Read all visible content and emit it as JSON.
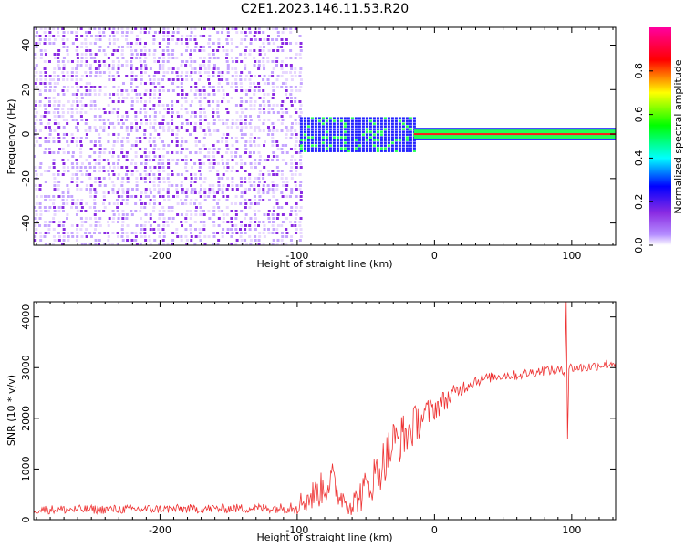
{
  "title": "C2E1.2023.146.11.53.R20",
  "chart_data": [
    {
      "type": "heatmap",
      "xlabel": "Height of straight line (km)",
      "ylabel": "Frequency (Hz)",
      "xlim": [
        -292,
        132
      ],
      "ylim": [
        -50,
        48
      ],
      "xticks": [
        -200,
        -100,
        0,
        100
      ],
      "yticks": [
        -40,
        -20,
        0,
        20,
        40
      ],
      "colorbar": {
        "label": "Normalized spectral amplitude",
        "range": [
          0,
          1
        ],
        "ticks": [
          0.0,
          0.2,
          0.4,
          0.6,
          0.8
        ],
        "colors": [
          "#ffffff",
          "#8a2be2",
          "#0000ff",
          "#00ffff",
          "#00ff00",
          "#ffff00",
          "#ff0000",
          "#ff00a0"
        ]
      },
      "regions": [
        {
          "x_from": -292,
          "x_to": -98,
          "freq_from": -50,
          "freq_to": 48,
          "amplitude": 0.1,
          "pattern": "noise"
        },
        {
          "x_from": -98,
          "x_to": -15,
          "freq_from": -6,
          "freq_to": 6,
          "amplitude": 0.35,
          "pattern": "band"
        },
        {
          "x_from": -15,
          "x_to": 132,
          "freq_from": -2,
          "freq_to": 2,
          "amplitude": 0.85,
          "pattern": "line"
        }
      ]
    },
    {
      "type": "line",
      "xlabel": "Height of straight line (km)",
      "ylabel": "SNR (10 * v/v)",
      "xlim": [
        -292,
        132
      ],
      "ylim": [
        0,
        4300
      ],
      "xticks": [
        -200,
        -100,
        0,
        100
      ],
      "yticks": [
        0,
        1000,
        2000,
        3000,
        4000
      ],
      "color": "#ee3333",
      "x": [
        -292,
        -250,
        -200,
        -150,
        -110,
        -100,
        -90,
        -80,
        -75,
        -70,
        -60,
        -50,
        -40,
        -30,
        -20,
        -10,
        0,
        10,
        20,
        30,
        40,
        50,
        60,
        70,
        80,
        90,
        95,
        96,
        97,
        98,
        100,
        110,
        120,
        132
      ],
      "values": [
        200,
        200,
        210,
        220,
        230,
        300,
        450,
        650,
        800,
        500,
        300,
        600,
        1000,
        1500,
        1700,
        2000,
        2200,
        2400,
        2600,
        2750,
        2800,
        2850,
        2850,
        2900,
        2950,
        2950,
        2900,
        4300,
        1600,
        3000,
        3000,
        3000,
        3050,
        3100
      ],
      "noise": [
        180,
        180,
        180,
        180,
        200,
        400,
        600,
        700,
        800,
        500,
        500,
        800,
        900,
        1000,
        900,
        700,
        500,
        400,
        300,
        250,
        200,
        200,
        200,
        200,
        200,
        200,
        200,
        0,
        0,
        200,
        200,
        200,
        200,
        200
      ]
    }
  ]
}
